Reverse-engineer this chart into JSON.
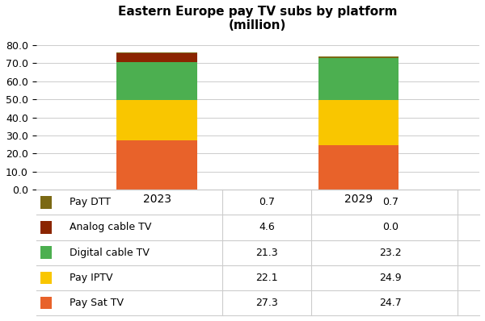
{
  "title": "Eastern Europe pay TV subs by platform\n(million)",
  "years": [
    "2023",
    "2029"
  ],
  "categories": [
    "Pay Sat TV",
    "Pay IPTV",
    "Digital cable TV",
    "Analog cable TV",
    "Pay DTT"
  ],
  "colors": {
    "Pay Sat TV": "#E8622A",
    "Pay IPTV": "#F9C600",
    "Digital cable TV": "#4CAF50",
    "Analog cable TV": "#8B2500",
    "Pay DTT": "#7B6914"
  },
  "values_2023": {
    "Pay Sat TV": 27.3,
    "Pay IPTV": 22.1,
    "Digital cable TV": 21.3,
    "Analog cable TV": 4.6,
    "Pay DTT": 0.7
  },
  "values_2029": {
    "Pay Sat TV": 24.7,
    "Pay IPTV": 24.9,
    "Digital cable TV": 23.2,
    "Analog cable TV": 0.0,
    "Pay DTT": 0.7
  },
  "ylim": [
    0,
    85
  ],
  "yticks": [
    0.0,
    10.0,
    20.0,
    30.0,
    40.0,
    50.0,
    60.0,
    70.0,
    80.0
  ],
  "bar_width": 0.4,
  "background_color": "#ffffff",
  "table_rows": [
    "Pay DTT",
    "Analog cable TV",
    "Digital cable TV",
    "Pay IPTV",
    "Pay Sat TV"
  ],
  "table_col1": [
    "0.7",
    "4.6",
    "21.3",
    "22.1",
    "27.3"
  ],
  "table_col2": [
    "0.7",
    "0.0",
    "23.2",
    "24.9",
    "24.7"
  ]
}
